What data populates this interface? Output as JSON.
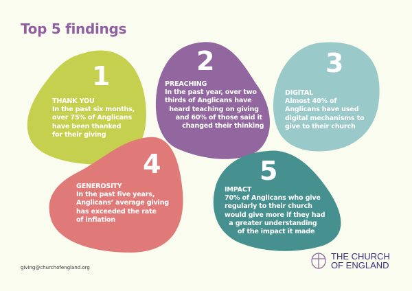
{
  "title": "Top 5 findings",
  "colors": {
    "title": "#8f5fa0",
    "finding_1": "#c6d04f",
    "finding_2": "#9267a0",
    "finding_3": "#99c9c8",
    "finding_4": "#e07a78",
    "finding_5": "#46918f",
    "logo": "#3a2c7a"
  },
  "findings": [
    {
      "number": "1",
      "heading": "THANK YOU",
      "body": "In the past six months,\nover 75% of Anglicans\nhave been thanked\nfor their giving"
    },
    {
      "number": "2",
      "heading": "PREACHING",
      "body": "In the past year, over two\nthirds of Anglicans have\n  heard teaching on giving\n     and 60% of those said it\n        changed their thinking"
    },
    {
      "number": "3",
      "heading": "DIGITAL",
      "body": "Almost 40% of\nAnglicans have used\ndigital mechanisms to\ngive to their church"
    },
    {
      "number": "4",
      "heading": "GENEROSITY",
      "body": "In the past five years,\nAnglicans’ average giving\nhas exceeded the rate\nof inflation"
    },
    {
      "number": "5",
      "heading": "IMPACT",
      "body": "70% of Anglicans who give\nregularly to their church\nwould give more if they had\n  a greater understanding\n      of the impact it made"
    }
  ],
  "footer": {
    "email": "giving@churchofengland.org",
    "logo_line1": "THE CHURCH",
    "logo_line2": "OF ENGLAND",
    "logo_icon": "church-of-england-cross-icon"
  }
}
